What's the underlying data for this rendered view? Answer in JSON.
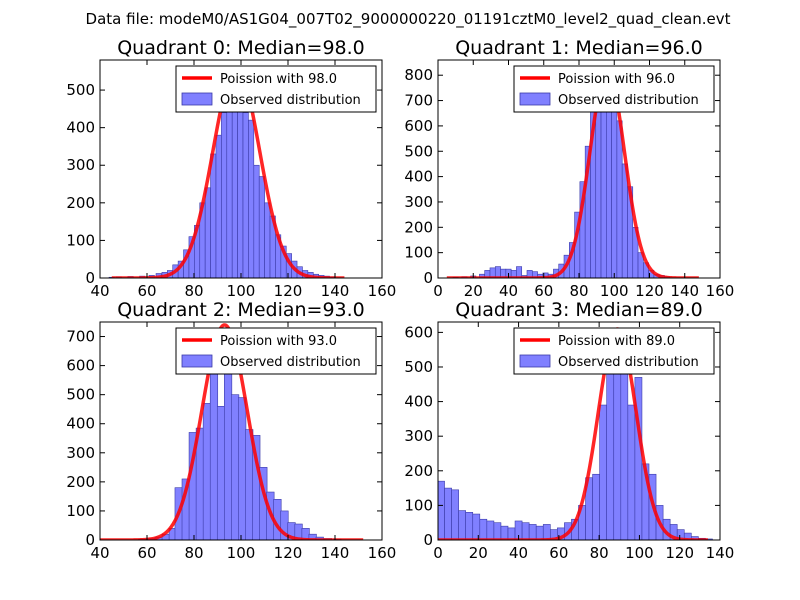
{
  "suptitle": "Data file: modeM0/AS1G04_007T02_9000000220_01191cztM0_level2_quad_clean.evt",
  "colors": {
    "bar_fill": "#8080ff",
    "bar_edge": "#3a3aa8",
    "fit_line": "#ff0000"
  },
  "chart_data": [
    {
      "type": "bar",
      "title": "Quadrant 0: Median=98.0",
      "legend": {
        "line_label": "Poission with 98.0",
        "bar_label": "Observed distribution",
        "position": "top-right"
      },
      "xlim": [
        40,
        160
      ],
      "ylim": [
        0,
        580
      ],
      "xticks": [
        40,
        60,
        80,
        100,
        120,
        140,
        160
      ],
      "yticks": [
        0,
        100,
        200,
        300,
        400,
        500
      ],
      "bin_width": 2.3,
      "bins": [
        [
          45,
          2
        ],
        [
          48,
          3
        ],
        [
          53,
          4
        ],
        [
          58,
          5
        ],
        [
          62,
          7
        ],
        [
          65,
          12
        ],
        [
          67.5,
          15
        ],
        [
          69.8,
          20
        ],
        [
          72.1,
          35
        ],
        [
          74.4,
          45
        ],
        [
          76.7,
          75
        ],
        [
          79,
          110
        ],
        [
          81.3,
          140
        ],
        [
          83.6,
          200
        ],
        [
          85.9,
          240
        ],
        [
          88.2,
          330
        ],
        [
          90.5,
          380
        ],
        [
          92.8,
          440
        ],
        [
          95.1,
          480
        ],
        [
          97.4,
          520
        ],
        [
          99.7,
          500
        ],
        [
          102,
          440
        ],
        [
          104.3,
          420
        ],
        [
          106.6,
          300
        ],
        [
          108.9,
          270
        ],
        [
          111.2,
          200
        ],
        [
          113.5,
          165
        ],
        [
          115.8,
          115
        ],
        [
          118.1,
          85
        ],
        [
          120.4,
          65
        ],
        [
          122.7,
          45
        ],
        [
          125,
          30
        ],
        [
          127.3,
          20
        ],
        [
          129.6,
          15
        ],
        [
          131.9,
          10
        ],
        [
          134.2,
          7
        ],
        [
          136.5,
          5
        ],
        [
          138.8,
          3
        ]
      ],
      "fit": {
        "mean": 98.0,
        "sigma": 9.9,
        "peak": 560,
        "x_range": [
          45,
          144
        ]
      }
    },
    {
      "type": "bar",
      "title": "Quadrant 1: Median=96.0",
      "legend": {
        "line_label": "Poission with 96.0",
        "bar_label": "Observed distribution",
        "position": "top-right"
      },
      "xlim": [
        0,
        160
      ],
      "ylim": [
        0,
        860
      ],
      "xticks": [
        0,
        20,
        40,
        60,
        80,
        100,
        120,
        140,
        160
      ],
      "yticks": [
        0,
        100,
        200,
        300,
        400,
        500,
        600,
        700,
        800
      ],
      "bin_width": 3,
      "bins": [
        [
          10,
          3
        ],
        [
          15,
          5
        ],
        [
          20,
          8
        ],
        [
          25,
          15
        ],
        [
          28,
          30
        ],
        [
          31,
          40
        ],
        [
          34,
          45
        ],
        [
          37,
          35
        ],
        [
          40,
          35
        ],
        [
          43,
          30
        ],
        [
          46,
          45
        ],
        [
          49,
          10
        ],
        [
          52,
          30
        ],
        [
          55,
          25
        ],
        [
          58,
          15
        ],
        [
          61,
          20
        ],
        [
          64,
          15
        ],
        [
          67,
          35
        ],
        [
          70,
          55
        ],
        [
          73,
          90
        ],
        [
          76,
          140
        ],
        [
          79,
          260
        ],
        [
          82,
          380
        ],
        [
          85,
          520
        ],
        [
          88,
          680
        ],
        [
          91,
          710
        ],
        [
          94,
          800
        ],
        [
          97,
          700
        ],
        [
          100,
          800
        ],
        [
          103,
          620
        ],
        [
          106,
          450
        ],
        [
          109,
          360
        ],
        [
          112,
          200
        ],
        [
          115,
          100
        ],
        [
          118,
          60
        ],
        [
          121,
          30
        ],
        [
          124,
          15
        ],
        [
          127,
          10
        ],
        [
          130,
          5
        ]
      ],
      "fit": {
        "mean": 96.0,
        "sigma": 9.8,
        "peak": 820,
        "x_range": [
          5,
          148
        ]
      }
    },
    {
      "type": "bar",
      "title": "Quadrant 2: Median=93.0",
      "legend": {
        "line_label": "Poission with 93.0",
        "bar_label": "Observed distribution",
        "position": "top-right"
      },
      "xlim": [
        40,
        160
      ],
      "ylim": [
        0,
        750
      ],
      "xticks": [
        40,
        60,
        80,
        100,
        120,
        140,
        160
      ],
      "yticks": [
        0,
        100,
        200,
        300,
        400,
        500,
        600,
        700
      ],
      "bin_width": 3.2,
      "bins": [
        [
          58,
          3
        ],
        [
          62,
          5
        ],
        [
          65,
          10
        ],
        [
          68,
          20
        ],
        [
          71,
          40
        ],
        [
          73.5,
          180
        ],
        [
          76.5,
          210
        ],
        [
          79.5,
          370
        ],
        [
          82.5,
          385
        ],
        [
          85.5,
          470
        ],
        [
          88.5,
          730
        ],
        [
          91.5,
          460
        ],
        [
          94.5,
          610
        ],
        [
          97.5,
          500
        ],
        [
          100.5,
          490
        ],
        [
          103.5,
          380
        ],
        [
          106.5,
          360
        ],
        [
          109.5,
          250
        ],
        [
          112.5,
          165
        ],
        [
          115.5,
          140
        ],
        [
          118.5,
          100
        ],
        [
          121.5,
          60
        ],
        [
          124.5,
          55
        ],
        [
          127.5,
          40
        ],
        [
          130.5,
          20
        ],
        [
          133.5,
          10
        ],
        [
          137,
          5
        ],
        [
          141,
          3
        ]
      ],
      "fit": {
        "mean": 93.0,
        "sigma": 9.6,
        "peak": 740,
        "x_range": [
          40,
          152
        ]
      }
    },
    {
      "type": "bar",
      "title": "Quadrant 3: Median=89.0",
      "legend": {
        "line_label": "Poission with 89.0",
        "bar_label": "Observed distribution",
        "position": "top-right"
      },
      "xlim": [
        0,
        140
      ],
      "ylim": [
        0,
        630
      ],
      "xticks": [
        0,
        20,
        40,
        60,
        80,
        100,
        120,
        140
      ],
      "yticks": [
        0,
        100,
        200,
        300,
        400,
        500,
        600
      ],
      "bin_width": 3.5,
      "bins": [
        [
          1.5,
          170
        ],
        [
          5,
          150
        ],
        [
          8.5,
          145
        ],
        [
          12,
          85
        ],
        [
          15.5,
          80
        ],
        [
          19,
          75
        ],
        [
          22.5,
          60
        ],
        [
          26,
          55
        ],
        [
          29.5,
          50
        ],
        [
          33,
          40
        ],
        [
          36.5,
          35
        ],
        [
          40,
          55
        ],
        [
          43.5,
          50
        ],
        [
          47,
          45
        ],
        [
          50.5,
          40
        ],
        [
          54,
          45
        ],
        [
          57.5,
          30
        ],
        [
          61,
          35
        ],
        [
          64.5,
          50
        ],
        [
          68,
          60
        ],
        [
          71.5,
          100
        ],
        [
          75,
          180
        ],
        [
          78.5,
          190
        ],
        [
          82,
          390
        ],
        [
          85.5,
          550
        ],
        [
          89,
          500
        ],
        [
          92.5,
          530
        ],
        [
          96,
          390
        ],
        [
          99.5,
          470
        ],
        [
          103,
          220
        ],
        [
          106.5,
          190
        ],
        [
          110,
          100
        ],
        [
          113.5,
          60
        ],
        [
          117,
          45
        ],
        [
          120.5,
          30
        ],
        [
          124,
          20
        ],
        [
          127.5,
          10
        ],
        [
          131,
          5
        ],
        [
          134.5,
          3
        ]
      ],
      "fit": {
        "mean": 89.0,
        "sigma": 9.4,
        "peak": 610,
        "x_range": [
          0,
          134
        ]
      }
    }
  ]
}
